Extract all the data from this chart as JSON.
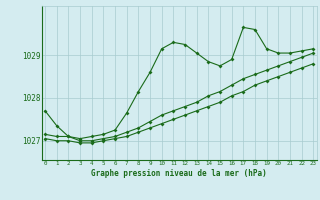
{
  "title": "Graphe pression niveau de la mer (hPa)",
  "bg_color": "#d4ecf0",
  "grid_color": "#a8cccf",
  "line_color": "#1a6b1a",
  "x_ticks": [
    0,
    1,
    2,
    3,
    4,
    5,
    6,
    7,
    8,
    9,
    10,
    11,
    12,
    13,
    14,
    15,
    16,
    17,
    18,
    19,
    20,
    21,
    22,
    23
  ],
  "y_ticks": [
    1027,
    1028,
    1029
  ],
  "ylim": [
    1026.55,
    1030.15
  ],
  "xlim": [
    -0.3,
    23.3
  ],
  "series1": [
    1027.7,
    1027.35,
    1027.1,
    1027.05,
    1027.1,
    1027.15,
    1027.25,
    1027.65,
    1028.15,
    1028.6,
    1029.15,
    1029.3,
    1029.25,
    1029.05,
    1028.85,
    1028.75,
    1028.9,
    1029.65,
    1029.6,
    1029.15,
    1029.05,
    1029.05,
    1029.1,
    1029.15
  ],
  "series2": [
    1027.15,
    1027.1,
    1027.1,
    1027.0,
    1027.0,
    1027.05,
    1027.1,
    1027.2,
    1027.3,
    1027.45,
    1027.6,
    1027.7,
    1027.8,
    1027.9,
    1028.05,
    1028.15,
    1028.3,
    1028.45,
    1028.55,
    1028.65,
    1028.75,
    1028.85,
    1028.95,
    1029.05
  ],
  "series3": [
    1027.05,
    1027.0,
    1027.0,
    1026.95,
    1026.95,
    1027.0,
    1027.05,
    1027.1,
    1027.2,
    1027.3,
    1027.4,
    1027.5,
    1027.6,
    1027.7,
    1027.8,
    1027.9,
    1028.05,
    1028.15,
    1028.3,
    1028.4,
    1028.5,
    1028.6,
    1028.7,
    1028.8
  ]
}
